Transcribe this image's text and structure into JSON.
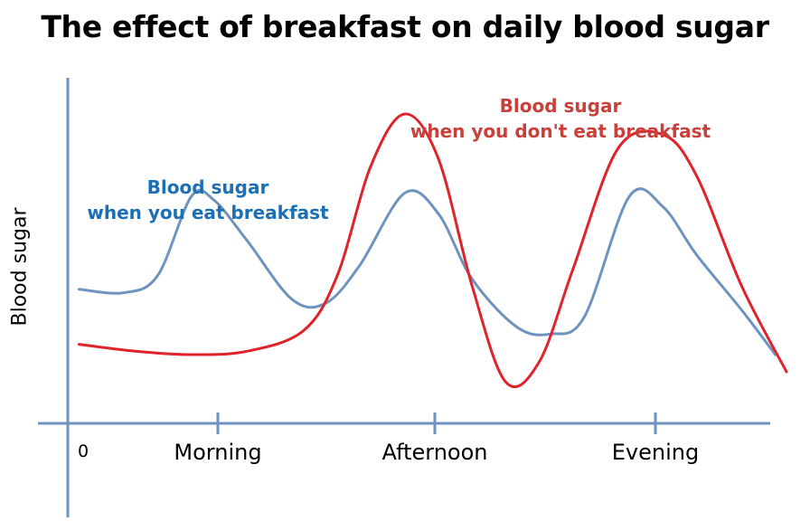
{
  "chart_data": {
    "type": "line",
    "title": "The effect of breakfast on daily blood sugar",
    "ylabel": "Blood sugar",
    "xlabel": "",
    "origin_label": "0",
    "categories": [
      "Morning",
      "Afternoon",
      "Evening"
    ],
    "xlim": [
      0,
      3.2
    ],
    "ylim": [
      0,
      10
    ],
    "grid": false,
    "series": [
      {
        "name": "Blood sugar\nwhen you eat breakfast",
        "name_lines": [
          "Blood sugar",
          "when you eat breakfast"
        ],
        "color": "#6f93bf",
        "x": [
          0.05,
          0.25,
          0.4,
          0.55,
          0.65,
          0.8,
          1.0,
          1.15,
          1.3,
          1.5,
          1.65,
          1.8,
          2.0,
          2.15,
          2.3,
          2.5,
          2.65,
          2.8,
          3.0,
          3.15
        ],
        "y": [
          3.9,
          3.8,
          4.3,
          6.6,
          6.5,
          5.3,
          3.6,
          3.5,
          4.6,
          6.7,
          6.1,
          4.2,
          2.8,
          2.6,
          3.1,
          6.6,
          6.3,
          4.9,
          3.3,
          2.0
        ]
      },
      {
        "name": "Blood sugar\nwhen you don't eat breakfast",
        "name_lines": [
          "Blood sugar",
          "when you don't eat breakfast"
        ],
        "color": "#e0232a",
        "x": [
          0.05,
          0.3,
          0.55,
          0.8,
          1.05,
          1.2,
          1.35,
          1.5,
          1.65,
          1.8,
          1.95,
          2.1,
          2.25,
          2.45,
          2.65,
          2.8,
          3.0,
          3.2
        ],
        "y": [
          2.3,
          2.1,
          2.0,
          2.1,
          2.7,
          4.3,
          7.5,
          9.0,
          7.7,
          4.0,
          1.2,
          1.8,
          4.5,
          8.0,
          8.4,
          7.2,
          4.0,
          1.5
        ]
      }
    ]
  }
}
